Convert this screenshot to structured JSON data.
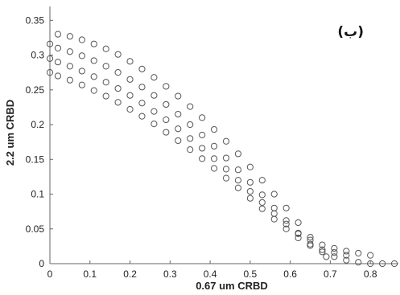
{
  "chart_data": {
    "type": "scatter",
    "title": "",
    "panel_tag": "(ب)",
    "xlabel": "0.67 um CRBD",
    "ylabel": "2.2 um CRBD",
    "xlim": [
      0,
      0.87
    ],
    "ylim": [
      0,
      0.37
    ],
    "x_ticks": [
      0,
      0.1,
      0.2,
      0.3,
      0.4,
      0.5,
      0.6,
      0.7,
      0.8
    ],
    "y_ticks": [
      0,
      0.05,
      0.1,
      0.15,
      0.2,
      0.25,
      0.3,
      0.35
    ],
    "x_tick_labels": [
      "0",
      "0.1",
      "0.2",
      "0.3",
      "0.4",
      "0.5",
      "0.6",
      "0.7",
      "0.8"
    ],
    "y_tick_labels": [
      "0",
      "0.05",
      "0.1",
      "0.15",
      "0.2",
      "0.25",
      "0.3",
      "0.35"
    ],
    "grid": false,
    "marker": "open-circle",
    "marker_color": "#555555",
    "axis_color": "#666666",
    "series": [
      {
        "x": [
          0.02,
          0.05,
          0.08,
          0.11,
          0.14,
          0.17,
          0.2,
          0.23,
          0.26,
          0.29,
          0.32,
          0.35,
          0.38,
          0.41,
          0.44,
          0.47,
          0.5,
          0.53,
          0.56,
          0.59,
          0.62,
          0.65,
          0.69
        ],
        "y": [
          0.33,
          0.327,
          0.322,
          0.316,
          0.309,
          0.301,
          0.291,
          0.28,
          0.268,
          0.255,
          0.241,
          0.226,
          0.21,
          0.193,
          0.176,
          0.158,
          0.139,
          0.12,
          0.1,
          0.08,
          0.059,
          0.038,
          0.01
        ]
      },
      {
        "x": [
          0.0,
          0.02,
          0.05,
          0.08,
          0.11,
          0.14,
          0.17,
          0.2,
          0.23,
          0.26,
          0.29,
          0.32,
          0.35,
          0.38,
          0.41,
          0.44,
          0.47,
          0.5,
          0.53,
          0.56,
          0.59,
          0.62,
          0.65,
          0.68,
          0.71,
          0.74
        ],
        "y": [
          0.316,
          0.31,
          0.305,
          0.299,
          0.292,
          0.284,
          0.275,
          0.265,
          0.254,
          0.242,
          0.229,
          0.215,
          0.2,
          0.185,
          0.169,
          0.152,
          0.135,
          0.117,
          0.099,
          0.08,
          0.062,
          0.043,
          0.028,
          0.02,
          0.016,
          0.012
        ]
      },
      {
        "x": [
          0.0,
          0.02,
          0.05,
          0.08,
          0.11,
          0.14,
          0.17,
          0.2,
          0.23,
          0.26,
          0.29,
          0.32,
          0.35,
          0.38,
          0.41,
          0.44,
          0.47,
          0.5,
          0.53,
          0.56,
          0.59,
          0.62,
          0.65,
          0.68,
          0.71,
          0.74,
          0.77,
          0.8
        ],
        "y": [
          0.295,
          0.29,
          0.284,
          0.277,
          0.269,
          0.261,
          0.252,
          0.242,
          0.231,
          0.219,
          0.207,
          0.194,
          0.18,
          0.166,
          0.151,
          0.136,
          0.12,
          0.104,
          0.088,
          0.072,
          0.057,
          0.044,
          0.034,
          0.027,
          0.022,
          0.018,
          0.015,
          0.012
        ]
      },
      {
        "x": [
          0.0,
          0.02,
          0.05,
          0.08,
          0.11,
          0.14,
          0.17,
          0.2,
          0.23,
          0.26,
          0.29,
          0.32,
          0.35,
          0.38,
          0.41,
          0.44,
          0.47,
          0.5,
          0.53,
          0.56,
          0.59,
          0.62,
          0.65,
          0.68,
          0.71,
          0.74,
          0.77,
          0.8,
          0.83,
          0.86
        ],
        "y": [
          0.275,
          0.27,
          0.264,
          0.257,
          0.249,
          0.241,
          0.232,
          0.222,
          0.212,
          0.201,
          0.189,
          0.177,
          0.164,
          0.151,
          0.137,
          0.123,
          0.109,
          0.094,
          0.079,
          0.064,
          0.05,
          0.037,
          0.026,
          0.017,
          0.01,
          0.005,
          0.002,
          0.0,
          0.0,
          0.0
        ]
      }
    ]
  }
}
